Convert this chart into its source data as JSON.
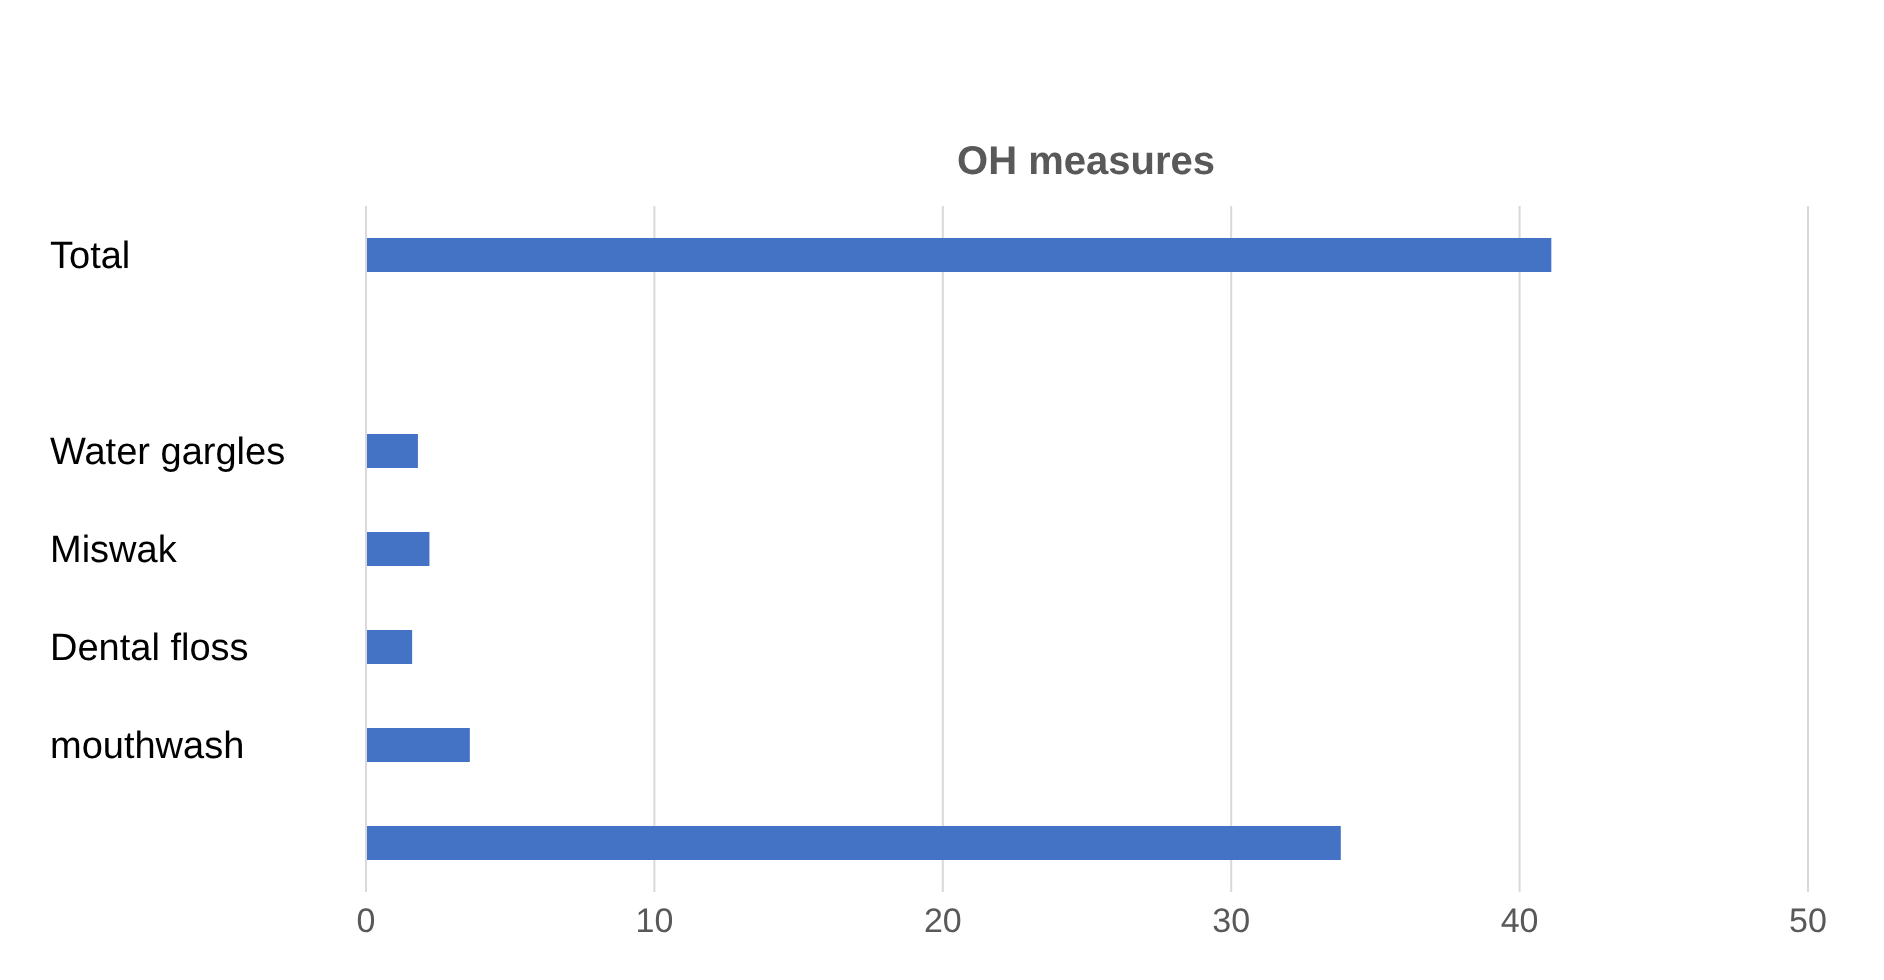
{
  "chart_data": {
    "type": "bar",
    "orientation": "horizontal",
    "title": "OH measures",
    "categories": [
      "Total",
      null,
      "Water gargles",
      "Miswak",
      "Dental floss",
      "mouthwash",
      null
    ],
    "values": [
      41.1,
      null,
      1.8,
      2.2,
      1.6,
      3.6,
      33.8
    ],
    "color": "#4472c4",
    "xlim": [
      0,
      50
    ],
    "xticks": [
      0,
      10,
      20,
      30,
      40,
      50
    ],
    "grid": "x"
  }
}
